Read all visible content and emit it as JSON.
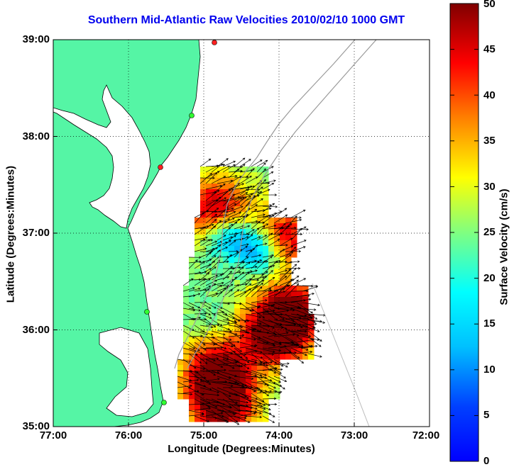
{
  "title": "Southern Mid-Atlantic Raw Velocities 2010/02/10 1000 GMT",
  "chart_data": {
    "type": "heatmap",
    "title": "Southern Mid-Atlantic Raw Velocities 2010/02/10 1000 GMT",
    "xlabel": "Longitude (Degrees:Minutes)",
    "ylabel": "Latitude (Degrees:Minutes)",
    "colorbar_label": "Surface Velocity (cm/s)",
    "xlim": [
      -77,
      -72
    ],
    "ylim": [
      35,
      39
    ],
    "x_ticks": [
      "77:00",
      "76:00",
      "75:00",
      "74:00",
      "73:00",
      "72:00"
    ],
    "y_ticks": [
      "39:00",
      "38:00",
      "37:00",
      "36:00",
      "35:00"
    ],
    "colorbar_ticks": [
      "50",
      "45",
      "40",
      "35",
      "30",
      "25",
      "20",
      "15",
      "10",
      "5",
      "0"
    ],
    "colorbar_range": [
      0,
      50
    ],
    "grid": true,
    "colormap": "jet",
    "land_color": "#55f5a5"
  }
}
